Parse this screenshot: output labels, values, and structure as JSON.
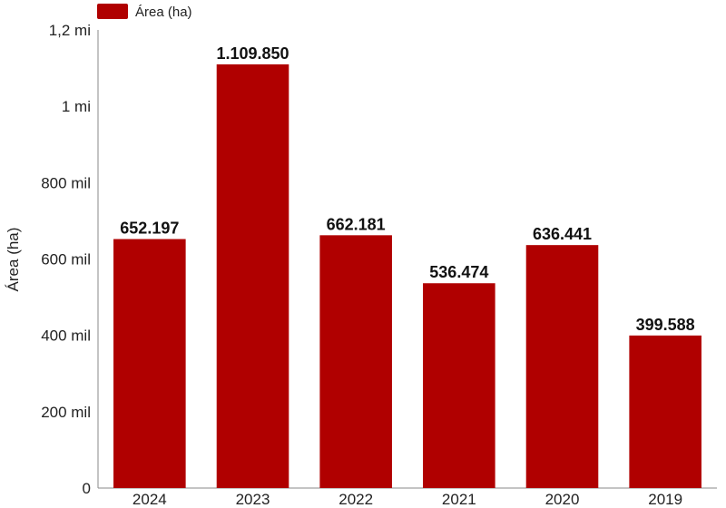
{
  "chart_data": {
    "type": "bar",
    "categories": [
      "2024",
      "2023",
      "2022",
      "2021",
      "2020",
      "2019"
    ],
    "series": [
      {
        "name": "Área (ha)",
        "values": [
          652197,
          1109850,
          662181,
          536474,
          636441,
          399588
        ],
        "data_labels": [
          "652.197",
          "1.109.850",
          "662.181",
          "536.474",
          "636.441",
          "399.588"
        ],
        "color": "#b00000"
      }
    ],
    "ylabel": "Área (ha)",
    "xlabel": "",
    "ylim": [
      0,
      1200000
    ],
    "yticks": [
      0,
      200000,
      400000,
      600000,
      800000,
      1000000,
      1200000
    ],
    "ytick_labels": [
      "0",
      "200 mil",
      "400 mil",
      "600 mil",
      "800 mil",
      "1 mi",
      "1,2 mi"
    ],
    "grid": false,
    "legend_position": "top-left"
  }
}
